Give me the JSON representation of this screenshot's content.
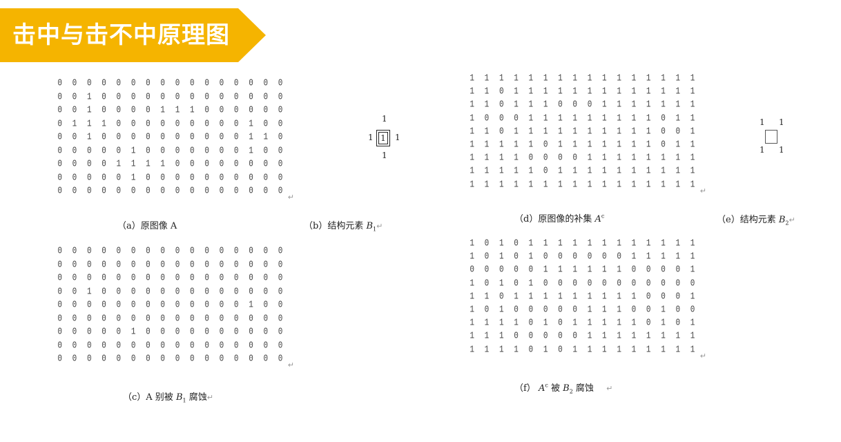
{
  "title": "击中与击不中原理图",
  "return_mark": "↵",
  "panels": {
    "a": {
      "caption": "（a）原图像 A",
      "matrix": [
        "0000000000000000",
        "0010000000000000",
        "0010000111000000",
        "0111000000000100",
        "0010000000000110",
        "0000010000000100",
        "0000111100000000",
        "0000010000000000",
        "0000000000000000"
      ]
    },
    "b": {
      "caption_prefix": "（b）结构元素",
      "caption_var": "B",
      "caption_sub": "1",
      "se_top": "1",
      "se_left": "1",
      "se_center": "1",
      "se_right": "1",
      "se_bottom": "1"
    },
    "c": {
      "caption_prefix": "（c）A 别被",
      "caption_var": "B",
      "caption_sub": "1",
      "caption_suffix": "腐蚀",
      "matrix": [
        "0000000000000000",
        "0000000000000000",
        "0000000000000000",
        "0010000000000000",
        "0000000000000100",
        "0000000000000000",
        "0000010000000000",
        "0000000000000000",
        "0000000000000000"
      ]
    },
    "d": {
      "caption_prefix": "（d）原图像的补集",
      "caption_var": "A",
      "caption_sup": "c",
      "matrix": [
        "1111111111111111",
        "1101111111111111",
        "1101110001111111",
        "1000111111111011",
        "1101111111111001",
        "1111101111111011",
        "1111000011111111",
        "1111101111111111",
        "1111111111111111"
      ]
    },
    "e": {
      "caption_prefix": "（e）结构元素",
      "caption_var": "B",
      "caption_sub": "2",
      "se_tl": "1",
      "se_tr": "1",
      "se_bl": "1",
      "se_br": "1"
    },
    "f": {
      "caption_prefix": "（f）",
      "caption_var": "A",
      "caption_sup": "c",
      "caption_mid": "被",
      "caption_var2": "B",
      "caption_sub2": "2",
      "caption_suffix": "腐蚀",
      "matrix": [
        "1010111111111111",
        "1010100000011111",
        "0000011111100001",
        "1010100000000000",
        "1101111111110001",
        "1010000011100100",
        "1111010111110101",
        "1110000011111111",
        "1111010111111111"
      ]
    }
  }
}
